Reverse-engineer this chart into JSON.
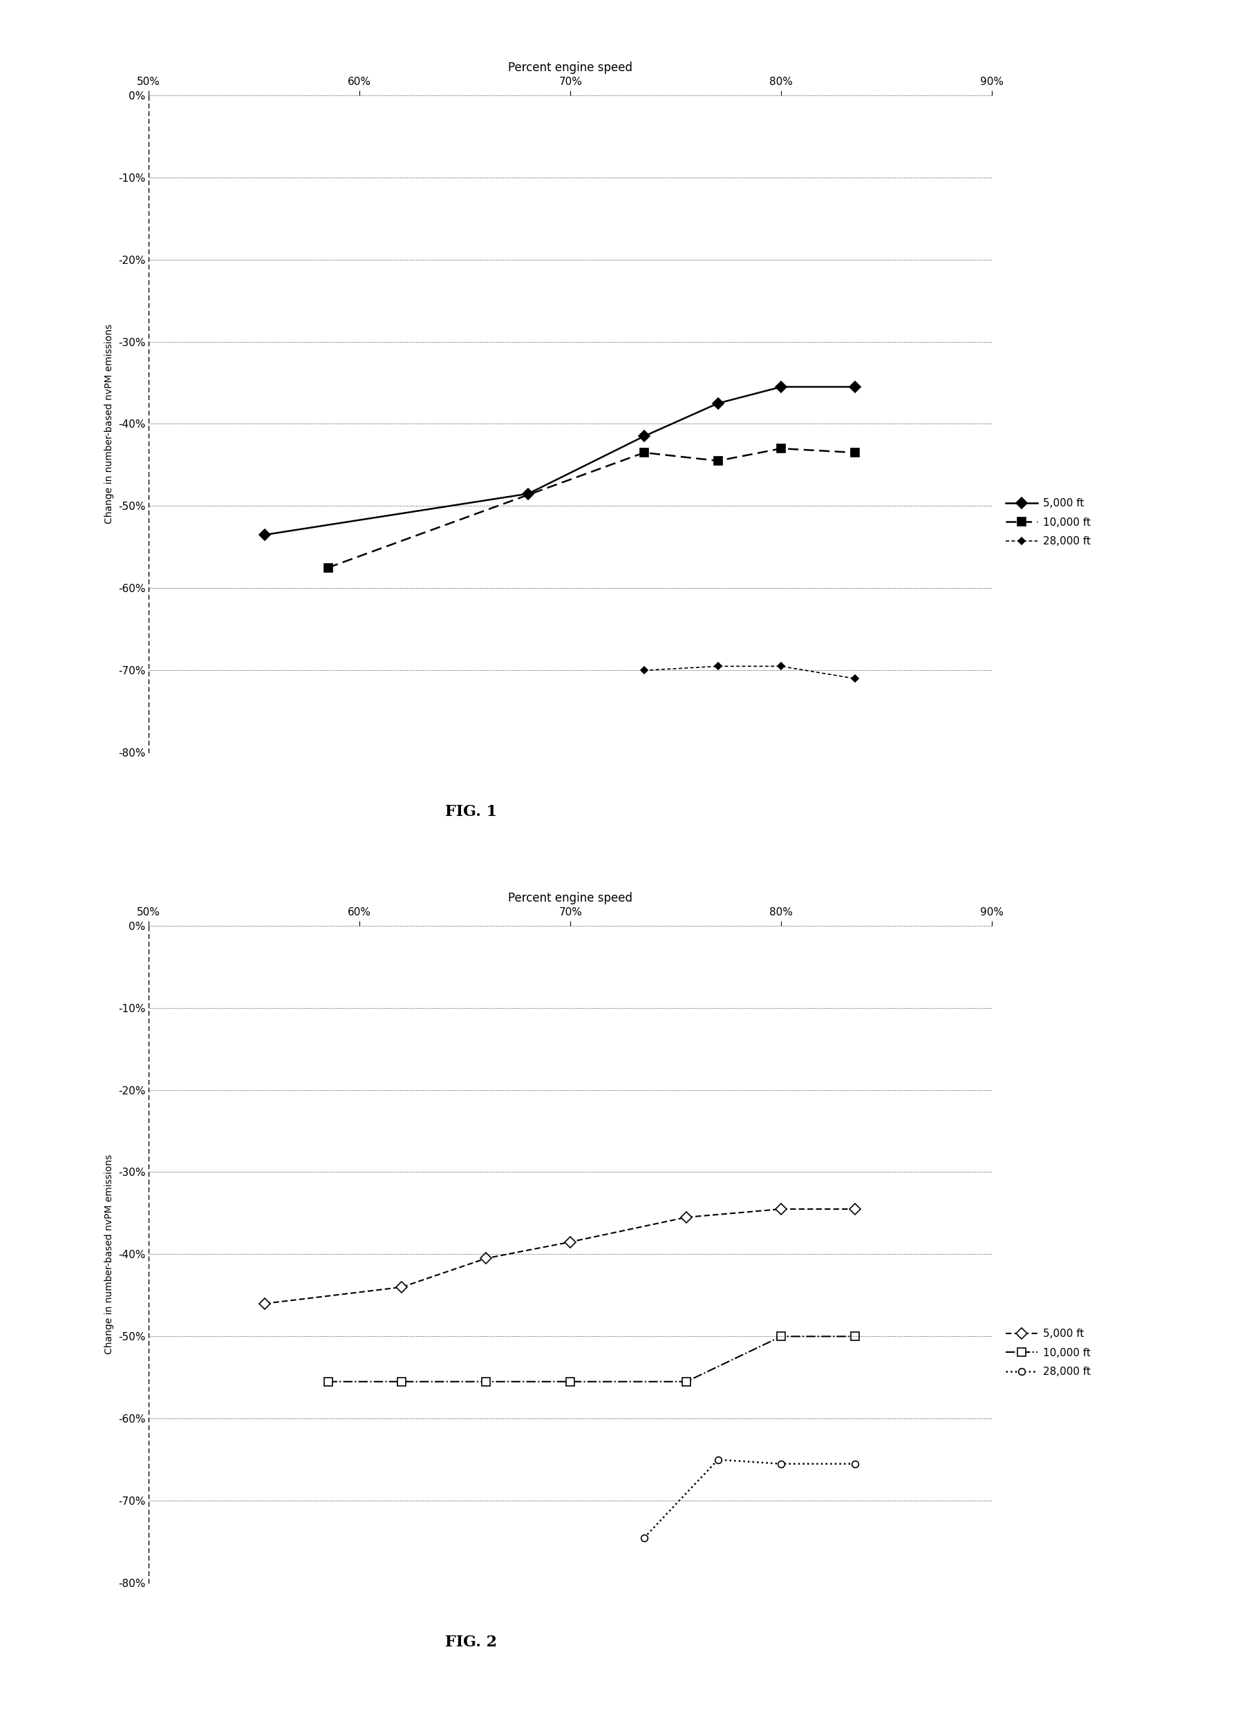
{
  "fig1": {
    "title": "Percent engine speed",
    "ylabel": "Change in number-based nvPM emissions",
    "xlim": [
      0.5,
      0.9
    ],
    "ylim": [
      -0.8,
      0.0
    ],
    "yticks": [
      0.0,
      -0.1,
      -0.2,
      -0.3,
      -0.4,
      -0.5,
      -0.6,
      -0.7,
      -0.8
    ],
    "xticks": [
      0.5,
      0.6,
      0.7,
      0.8,
      0.9
    ],
    "series": [
      {
        "label": "5,000 ft",
        "x": [
          0.555,
          0.68,
          0.735,
          0.77,
          0.8,
          0.835
        ],
        "y": [
          -0.535,
          -0.485,
          -0.415,
          -0.375,
          -0.355,
          -0.355
        ],
        "linestyle": "-",
        "marker": "D",
        "markerfacecolor": "black",
        "markersize": 8,
        "linewidth": 1.8,
        "color": "black",
        "dashes": []
      },
      {
        "label": "10,000 ft",
        "x": [
          0.585,
          0.735,
          0.77,
          0.8,
          0.835
        ],
        "y": [
          -0.575,
          -0.435,
          -0.445,
          -0.43,
          -0.435
        ],
        "linestyle": "--",
        "marker": "s",
        "markerfacecolor": "black",
        "markersize": 9,
        "linewidth": 1.8,
        "color": "black",
        "dashes": [
          6,
          3
        ]
      },
      {
        "label": "28,000 ft",
        "x": [
          0.735,
          0.77,
          0.8,
          0.835
        ],
        "y": [
          -0.7,
          -0.695,
          -0.695,
          -0.71
        ],
        "linestyle": "--",
        "marker": "D",
        "markerfacecolor": "black",
        "markersize": 5,
        "linewidth": 1.2,
        "color": "black",
        "dashes": [
          3,
          2
        ]
      }
    ]
  },
  "fig2": {
    "title": "Percent engine speed",
    "ylabel": "Change in number-based nvPM emissions",
    "xlim": [
      0.5,
      0.9
    ],
    "ylim": [
      -0.8,
      0.0
    ],
    "yticks": [
      0.0,
      -0.1,
      -0.2,
      -0.3,
      -0.4,
      -0.5,
      -0.6,
      -0.7,
      -0.8
    ],
    "xticks": [
      0.5,
      0.6,
      0.7,
      0.8,
      0.9
    ],
    "series": [
      {
        "label": "5,000 ft",
        "x": [
          0.555,
          0.62,
          0.66,
          0.7,
          0.755,
          0.8,
          0.835
        ],
        "y": [
          -0.46,
          -0.44,
          -0.405,
          -0.385,
          -0.355,
          -0.345,
          -0.345
        ],
        "linestyle": "--",
        "marker": "D",
        "markerfacecolor": "white",
        "markersize": 8,
        "linewidth": 1.5,
        "color": "black",
        "dashes": [
          4,
          2
        ]
      },
      {
        "label": "10,000 ft",
        "x": [
          0.585,
          0.62,
          0.66,
          0.7,
          0.755,
          0.8,
          0.835
        ],
        "y": [
          -0.555,
          -0.555,
          -0.555,
          -0.555,
          -0.555,
          -0.5,
          -0.5
        ],
        "linestyle": "-.",
        "marker": "s",
        "markerfacecolor": "white",
        "markersize": 8,
        "linewidth": 1.5,
        "color": "black",
        "dashes": []
      },
      {
        "label": "28,000 ft",
        "x": [
          0.735,
          0.77,
          0.8,
          0.835
        ],
        "y": [
          -0.745,
          -0.65,
          -0.655,
          -0.655
        ],
        "linestyle": ":",
        "marker": "o",
        "markerfacecolor": "white",
        "markersize": 7,
        "linewidth": 1.8,
        "color": "black",
        "dashes": []
      }
    ]
  },
  "fig1_label": "FIG. 1",
  "fig2_label": "FIG. 2",
  "background_color": "white",
  "legend_fontsize": 11,
  "axis_fontsize": 11,
  "title_fontsize": 12,
  "ylabel_fontsize": 10
}
